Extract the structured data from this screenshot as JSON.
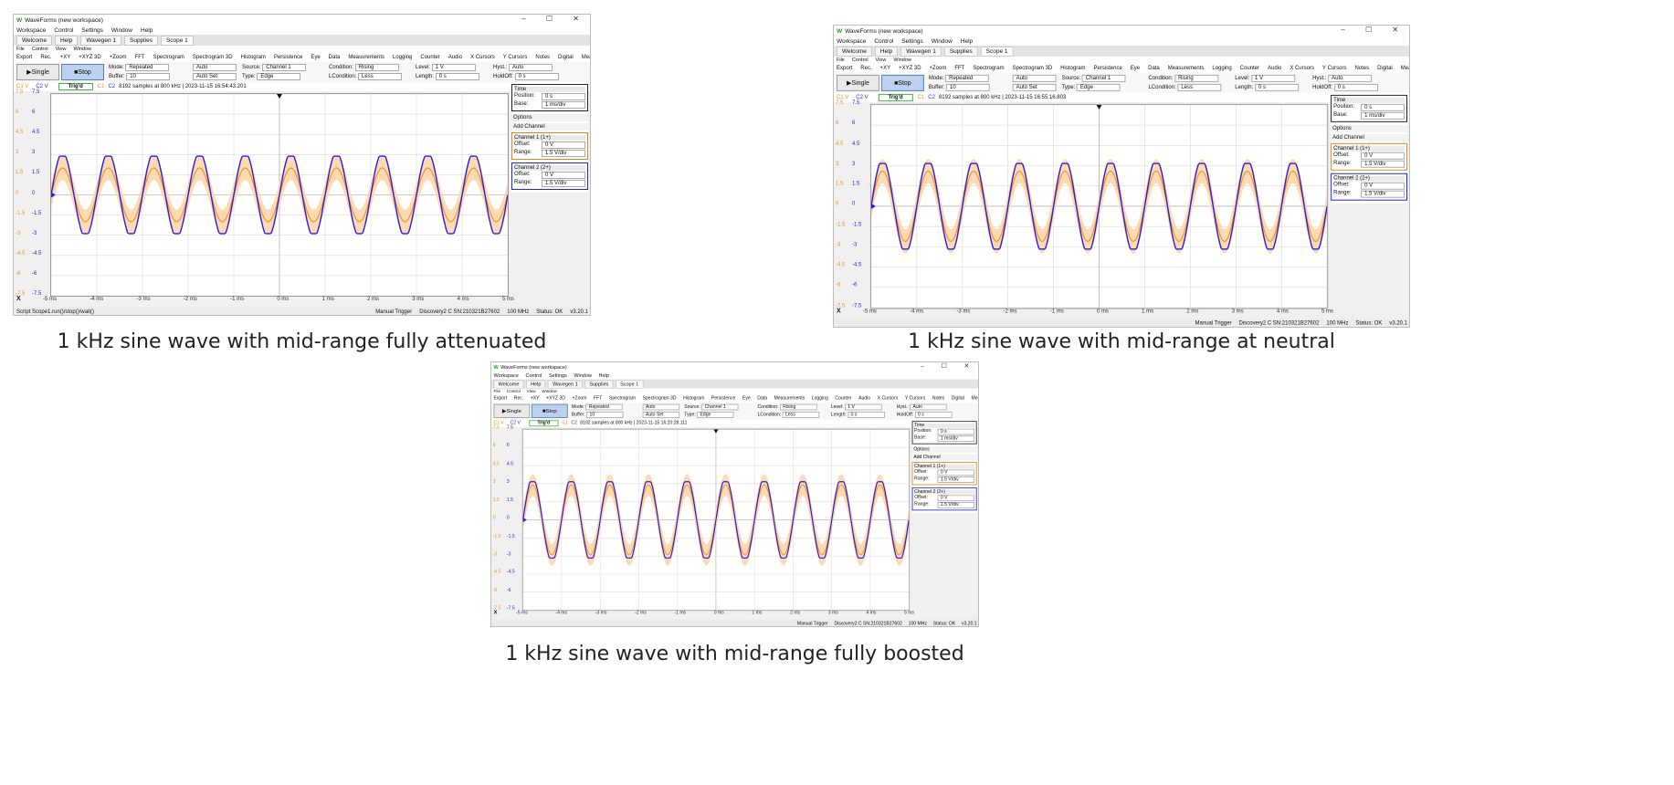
{
  "app": {
    "window_title": "WaveForms (new workspace)",
    "window_controls": "– ☐ ✕",
    "menu": [
      "Workspace",
      "Control",
      "Settings",
      "Window",
      "Help"
    ],
    "tabs": [
      {
        "label": "Welcome"
      },
      {
        "label": "Help"
      },
      {
        "label": "Wavegen 1"
      },
      {
        "label": "Supplies"
      },
      {
        "label": "Scope 1"
      }
    ],
    "sub_menu": [
      "File",
      "Control",
      "View",
      "Window"
    ],
    "toolbar": [
      "Export",
      "Rec.",
      "+XY",
      "+XYZ 3D",
      "+Zoom",
      "FFT",
      "Spectrogram",
      "Spectrogram 3D",
      "Histogram",
      "Persistence",
      "Eye",
      "Data",
      "Measurements",
      "Logging",
      "Counter",
      "Audio",
      "X Cursors",
      "Y Cursors",
      "Notes",
      "Digital",
      "Measurements"
    ],
    "single_label": "Single",
    "stop_label": "Stop",
    "mode_label": "Mode:",
    "mode_value": "Repeated",
    "buffer_label": "Buffer:",
    "buffer_value": "10",
    "auto_label": "Auto",
    "autoset_label": "Auto Set",
    "source_label": "Source:",
    "source_value": "Channel 1",
    "type_label": "Type:",
    "type_value": "Edge",
    "condition_label": "Condition:",
    "condition_value": "Rising",
    "lcondition_label": "LCondition:",
    "lcondition_value": "Less",
    "level_label": "Level:",
    "level_value": "1 V",
    "length_label": "Length:",
    "length_value": "0 s",
    "hyst_label": "Hyst.:",
    "hyst_value": "Auto",
    "holdoff_label": "HoldOff:",
    "holdoff_value": "0 s",
    "c1_label": "C1 V",
    "c2_label": "C2 V",
    "trig_label": "Trig'd",
    "c1_tag": "C1",
    "c2_tag": "C2",
    "time_box": {
      "title": "Time",
      "position_label": "Position:",
      "position_value": "0 s",
      "base_label": "Base:",
      "base_value": "1 ms/div"
    },
    "options_label": "Options",
    "add_channel_label": "Add Channel",
    "channel1": {
      "title": "Channel 1 (1+)",
      "offset_label": "Offset:",
      "offset_value": "0 V",
      "range_label": "Range:",
      "range_value": "1.5 V/div"
    },
    "channel2": {
      "title": "Channel 2 (2+)",
      "offset_label": "Offset:",
      "offset_value": "0 V",
      "range_label": "Range:",
      "range_value": "1.5 V/div"
    },
    "x_labels": [
      "-5 ms",
      "-4 ms",
      "-3 ms",
      "-2 ms",
      "-1 ms",
      "0 ms",
      "1 ms",
      "2 ms",
      "3 ms",
      "4 ms",
      "5 ms"
    ],
    "y_labels": [
      "7.5",
      "6",
      "4.5",
      "3",
      "1.5",
      "0",
      "-1.5",
      "-3",
      "-4.5",
      "-6",
      "-7.5"
    ],
    "x_label_key": "X",
    "manual_trigger": "Manual Trigger",
    "device": "Discovery2 C SN:210321B27602",
    "freq": "100 MHz",
    "status": "Status: OK",
    "version": "v3.20.1"
  },
  "panels": [
    {
      "caption": "1 kHz sine wave with mid-range fully attenuated",
      "info": "8192 samples at 800 kHz | 2023-11-15 16:54:43.201",
      "script_status": "Script Scope1.run()/stop()/wait()",
      "ch1_amplitude_v": 2.0,
      "ch2_amplitude_v": 3.0
    },
    {
      "caption": "1 kHz sine wave with mid-range at neutral",
      "info": "8192 samples at 800 kHz | 2023-11-15 16:55:16.803",
      "script_status": "",
      "ch1_amplitude_v": 2.6,
      "ch2_amplitude_v": 3.3
    },
    {
      "caption": "1 kHz sine wave with mid-range fully boosted",
      "info": "8192 samples at 800 kHz | 2023-11-15 16:20:28.111",
      "script_status": "",
      "ch1_amplitude_v": 2.9,
      "ch2_amplitude_v": 3.3
    }
  ],
  "colors": {
    "ch1": "#f0901f",
    "ch1_band": "#fcd3a6",
    "ch2": "#2a1ee0",
    "grid": "#d9d9d9",
    "trig_green": "#3dbb3d"
  }
}
